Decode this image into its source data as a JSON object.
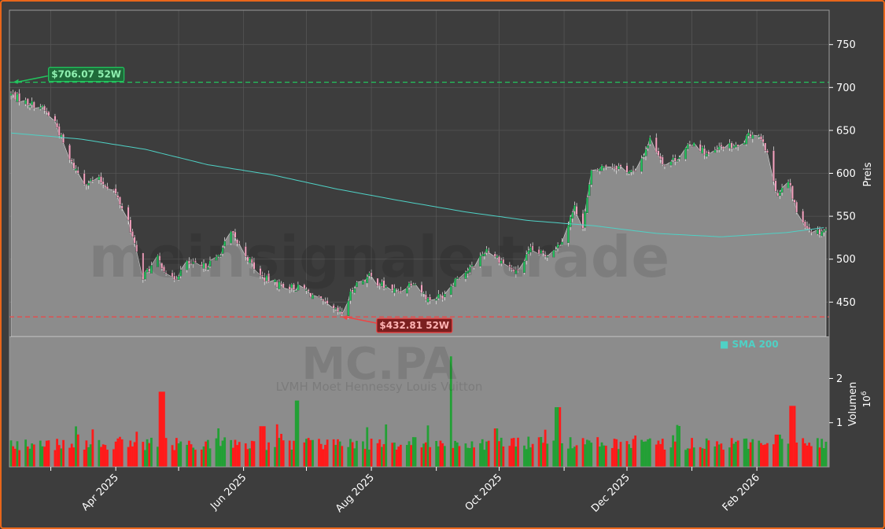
{
  "chart_data": {
    "type": "candlestick",
    "watermark": {
      "brand": "meinsignale.trade",
      "ticker": "MC.PA",
      "company": "LVMH Moet Hennessy Louis Vuitton"
    },
    "price_panel": {
      "ylabel": "Preis",
      "ylim": [
        410,
        790
      ],
      "yticks": [
        450,
        500,
        550,
        600,
        650,
        700,
        750
      ],
      "high_52w": {
        "value": 706.07,
        "label": "$706.07 52W",
        "color": "#22c55e"
      },
      "low_52w": {
        "value": 432.81,
        "label": "$432.81 52W",
        "color": "#ef4444"
      },
      "legend": {
        "label": "SMA 200",
        "color": "#4fd1c5",
        "placement": "bottom-right"
      },
      "close_anchors": [
        [
          "2025-02-10",
          692
        ],
        [
          "2025-02-17",
          683
        ],
        [
          "2025-02-24",
          678
        ],
        [
          "2025-03-03",
          660
        ],
        [
          "2025-03-10",
          615
        ],
        [
          "2025-03-17",
          590
        ],
        [
          "2025-03-24",
          592
        ],
        [
          "2025-03-31",
          580
        ],
        [
          "2025-04-07",
          545
        ],
        [
          "2025-04-10",
          515
        ],
        [
          "2025-04-14",
          480
        ],
        [
          "2025-04-21",
          500
        ],
        [
          "2025-04-28",
          475
        ],
        [
          "2025-05-05",
          495
        ],
        [
          "2025-05-12",
          490
        ],
        [
          "2025-05-19",
          500
        ],
        [
          "2025-05-26",
          530
        ],
        [
          "2025-06-02",
          505
        ],
        [
          "2025-06-09",
          480
        ],
        [
          "2025-06-16",
          472
        ],
        [
          "2025-06-23",
          468
        ],
        [
          "2025-06-30",
          465
        ],
        [
          "2025-07-07",
          452
        ],
        [
          "2025-07-14",
          440
        ],
        [
          "2025-07-18",
          436
        ],
        [
          "2025-07-24",
          470
        ],
        [
          "2025-07-31",
          480
        ],
        [
          "2025-08-07",
          468
        ],
        [
          "2025-08-14",
          462
        ],
        [
          "2025-08-21",
          475
        ],
        [
          "2025-08-28",
          453
        ],
        [
          "2025-09-04",
          458
        ],
        [
          "2025-09-11",
          480
        ],
        [
          "2025-09-18",
          490
        ],
        [
          "2025-09-25",
          512
        ],
        [
          "2025-10-02",
          498
        ],
        [
          "2025-10-09",
          484
        ],
        [
          "2025-10-16",
          510
        ],
        [
          "2025-10-23",
          505
        ],
        [
          "2025-10-30",
          518
        ],
        [
          "2025-11-06",
          560
        ],
        [
          "2025-11-10",
          540
        ],
        [
          "2025-11-14",
          600
        ],
        [
          "2025-11-21",
          610
        ],
        [
          "2025-11-28",
          607
        ],
        [
          "2025-12-05",
          600
        ],
        [
          "2025-12-12",
          640
        ],
        [
          "2025-12-19",
          610
        ],
        [
          "2025-12-26",
          620
        ],
        [
          "2026-01-02",
          637
        ],
        [
          "2026-01-09",
          620
        ],
        [
          "2026-01-16",
          632
        ],
        [
          "2026-01-23",
          630
        ],
        [
          "2026-01-30",
          648
        ],
        [
          "2026-02-04",
          640
        ],
        [
          "2026-02-08",
          600
        ],
        [
          "2026-02-11",
          575
        ],
        [
          "2026-02-16",
          590
        ],
        [
          "2026-02-20",
          555
        ],
        [
          "2026-02-26",
          535
        ],
        [
          "2026-03-02",
          532
        ],
        [
          "2026-03-06",
          535
        ]
      ],
      "sma200_anchors": [
        [
          "2025-02-10",
          647
        ],
        [
          "2025-03-15",
          640
        ],
        [
          "2025-04-15",
          628
        ],
        [
          "2025-05-15",
          610
        ],
        [
          "2025-06-15",
          598
        ],
        [
          "2025-07-15",
          582
        ],
        [
          "2025-08-15",
          568
        ],
        [
          "2025-09-15",
          555
        ],
        [
          "2025-10-15",
          545
        ],
        [
          "2025-11-15",
          539
        ],
        [
          "2025-12-15",
          530
        ],
        [
          "2026-01-15",
          526
        ],
        [
          "2026-02-15",
          531
        ],
        [
          "2026-03-06",
          537
        ]
      ]
    },
    "volume_panel": {
      "ylabel": "Volumen",
      "scale_label": "10^6",
      "ylim": [
        0,
        2.95
      ],
      "yticks": [
        1,
        2
      ],
      "spikes": [
        [
          "2025-04-23",
          1.7
        ],
        [
          "2025-06-10",
          0.92
        ],
        [
          "2025-06-27",
          1.5
        ],
        [
          "2025-08-09",
          0.96
        ],
        [
          "2025-09-07",
          2.5
        ],
        [
          "2025-09-29",
          0.87
        ],
        [
          "2025-10-29",
          1.35
        ],
        [
          "2026-02-18",
          1.38
        ],
        [
          "2026-02-11",
          0.73
        ]
      ]
    },
    "x_axis": {
      "start": "2025-02-10",
      "end": "2026-03-06",
      "ticks": [
        {
          "date": "2025-03-01",
          "label": ""
        },
        {
          "date": "2025-04-01",
          "label": "Apr 2025"
        },
        {
          "date": "2025-05-01",
          "label": ""
        },
        {
          "date": "2025-06-01",
          "label": "Jun 2025"
        },
        {
          "date": "2025-07-01",
          "label": ""
        },
        {
          "date": "2025-08-01",
          "label": "Aug 2025"
        },
        {
          "date": "2025-09-01",
          "label": ""
        },
        {
          "date": "2025-10-01",
          "label": "Oct 2025"
        },
        {
          "date": "2025-11-01",
          "label": ""
        },
        {
          "date": "2025-12-01",
          "label": "Dec 2025"
        },
        {
          "date": "2026-01-01",
          "label": ""
        },
        {
          "date": "2026-02-01",
          "label": "Feb 2026"
        }
      ]
    },
    "colors": {
      "up": "#22a035",
      "down": "#ff1a1a",
      "candle_up": "#22c55e",
      "candle_down": "#f5a3c0",
      "area": "#8c8c8c",
      "panel_bg": "#3d3d3d",
      "grid": "#555555",
      "frame": "#e8661a"
    }
  }
}
